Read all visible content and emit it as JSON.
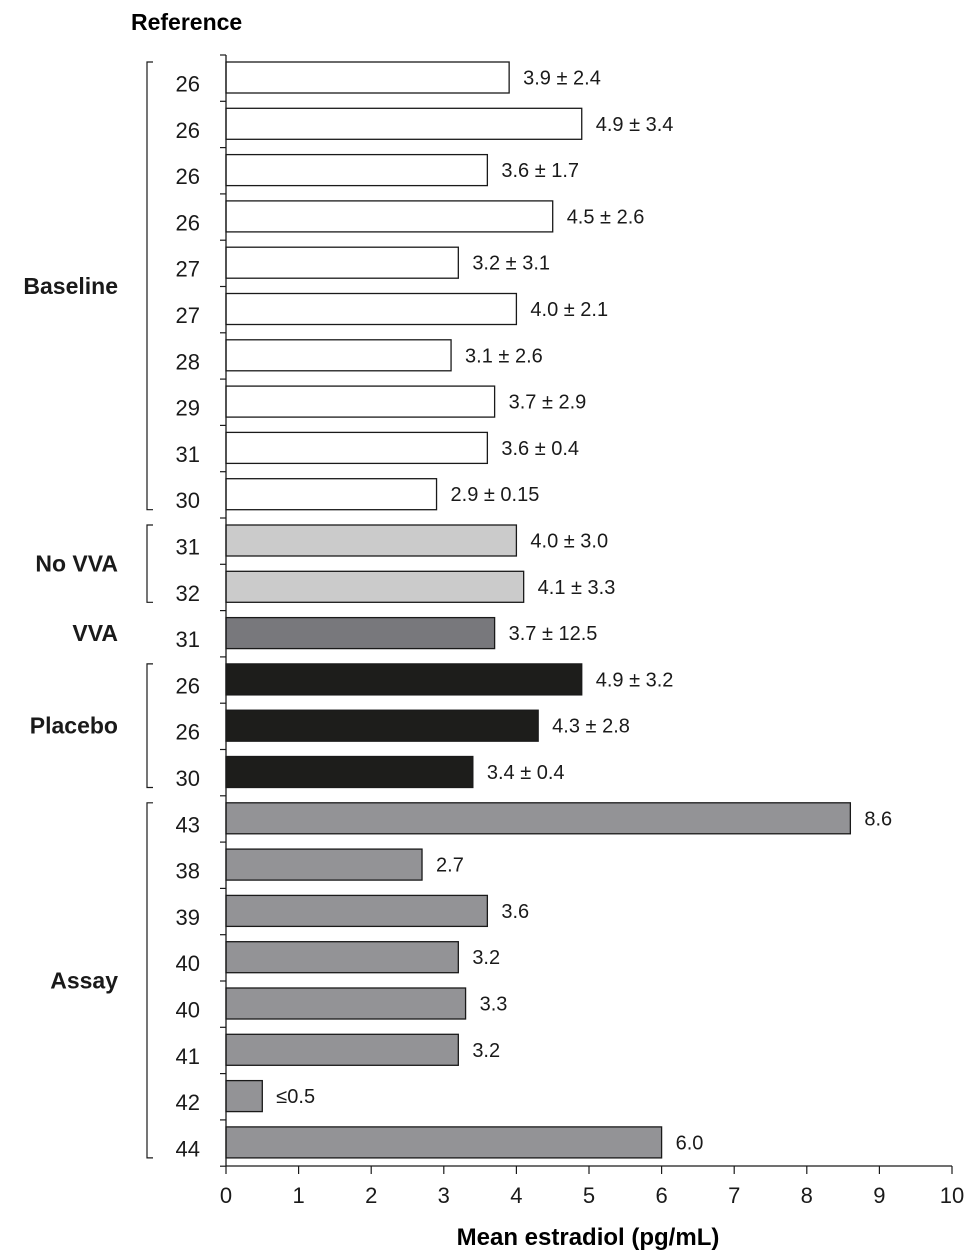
{
  "chart_data": {
    "type": "bar",
    "orientation": "horizontal",
    "title": "Reference",
    "xlabel": "Mean estradiol (pg/mL)",
    "xlim": [
      0,
      10
    ],
    "xticks": [
      "0",
      "1",
      "2",
      "3",
      "4",
      "5",
      "6",
      "7",
      "8",
      "9",
      "10"
    ],
    "groups": [
      {
        "name": "Baseline",
        "color": "#ffffff",
        "start": 0,
        "end": 9
      },
      {
        "name": "No VVA",
        "color": "#cbcbcb",
        "start": 10,
        "end": 11
      },
      {
        "name": "VVA",
        "color": "#78787c",
        "start": 12,
        "end": 12
      },
      {
        "name": "Placebo",
        "color": "#1d1d1b",
        "start": 13,
        "end": 15
      },
      {
        "name": "Assay",
        "color": "#939396",
        "start": 16,
        "end": 23
      }
    ],
    "bars": [
      {
        "ref": "26",
        "value": 3.9,
        "label": "3.9 ± 2.4"
      },
      {
        "ref": "26",
        "value": 4.9,
        "label": "4.9 ± 3.4"
      },
      {
        "ref": "26",
        "value": 3.6,
        "label": "3.6 ± 1.7"
      },
      {
        "ref": "26",
        "value": 4.5,
        "label": "4.5 ± 2.6"
      },
      {
        "ref": "27",
        "value": 3.2,
        "label": "3.2 ± 3.1"
      },
      {
        "ref": "27",
        "value": 4.0,
        "label": "4.0 ± 2.1"
      },
      {
        "ref": "28",
        "value": 3.1,
        "label": "3.1 ± 2.6"
      },
      {
        "ref": "29",
        "value": 3.7,
        "label": "3.7 ± 2.9"
      },
      {
        "ref": "31",
        "value": 3.6,
        "label": "3.6 ± 0.4"
      },
      {
        "ref": "30",
        "value": 2.9,
        "label": "2.9 ± 0.15"
      },
      {
        "ref": "31",
        "value": 4.0,
        "label": "4.0 ± 3.0"
      },
      {
        "ref": "32",
        "value": 4.1,
        "label": "4.1 ± 3.3"
      },
      {
        "ref": "31",
        "value": 3.7,
        "label": "3.7 ± 12.5"
      },
      {
        "ref": "26",
        "value": 4.9,
        "label": "4.9 ± 3.2"
      },
      {
        "ref": "26",
        "value": 4.3,
        "label": "4.3 ± 2.8"
      },
      {
        "ref": "30",
        "value": 3.4,
        "label": "3.4 ± 0.4"
      },
      {
        "ref": "43",
        "value": 8.6,
        "label": "8.6"
      },
      {
        "ref": "38",
        "value": 2.7,
        "label": "2.7"
      },
      {
        "ref": "39",
        "value": 3.6,
        "label": "3.6"
      },
      {
        "ref": "40",
        "value": 3.2,
        "label": "3.2"
      },
      {
        "ref": "40",
        "value": 3.3,
        "label": "3.3"
      },
      {
        "ref": "41",
        "value": 3.2,
        "label": "3.2"
      },
      {
        "ref": "42",
        "value": 0.5,
        "label": "≤0.5"
      },
      {
        "ref": "44",
        "value": 6.0,
        "label": "6.0"
      }
    ]
  }
}
